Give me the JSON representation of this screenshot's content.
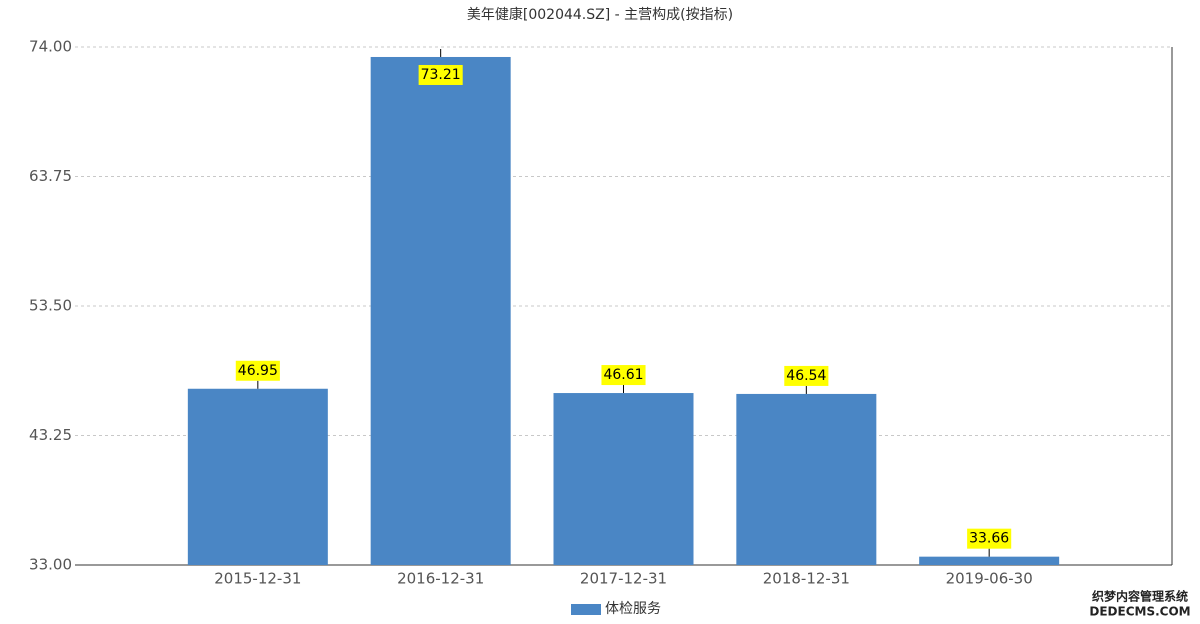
{
  "chart_data": {
    "type": "bar",
    "title": "美年健康[002044.SZ] - 主营构成(按指标)",
    "categories": [
      "2015-12-31",
      "2016-12-31",
      "2017-12-31",
      "2018-12-31",
      "2019-06-30"
    ],
    "series": [
      {
        "name": "体检服务",
        "color": "#4a86c5",
        "values": [
          46.95,
          73.21,
          46.61,
          46.54,
          33.66
        ]
      }
    ],
    "ylim": [
      33,
      74
    ],
    "yticks": [
      {
        "value": 33,
        "label": "33.00"
      },
      43.25,
      {
        "value": 53.5,
        "label": "53.50"
      },
      63.75,
      {
        "value": 74,
        "label": "74.00"
      }
    ],
    "grid": true,
    "watermark": [
      "织梦内容管理系统",
      "DEDECMS.COM"
    ]
  }
}
